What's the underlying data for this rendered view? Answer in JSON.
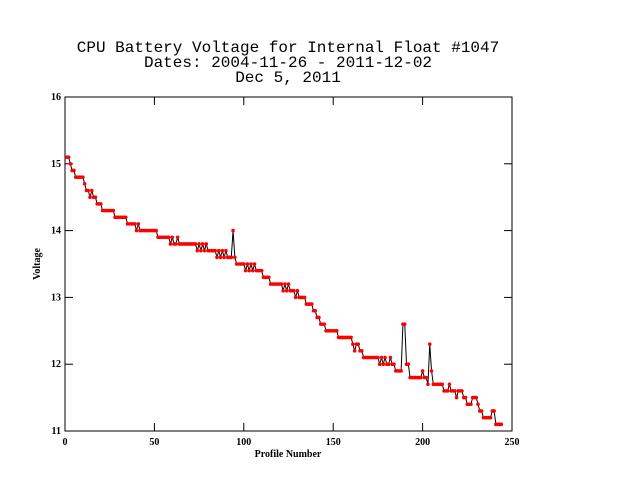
{
  "chart_data": {
    "type": "line",
    "title": [
      "CPU Battery Voltage for Internal Float #1047",
      "Dates:  2004-11-26 -  2011-12-02",
      "Dec  5, 2011"
    ],
    "xlabel": "Profile Number",
    "ylabel": "Voltage",
    "xlim": [
      0,
      250
    ],
    "xticks": [
      0,
      50,
      100,
      150,
      200,
      250
    ],
    "ylim": [
      11,
      16
    ],
    "yticks": [
      11,
      12,
      13,
      14,
      15,
      16
    ],
    "x": [
      1,
      2,
      3,
      4,
      5,
      6,
      7,
      8,
      9,
      10,
      11,
      12,
      13,
      14,
      15,
      16,
      17,
      18,
      19,
      20,
      21,
      22,
      23,
      24,
      25,
      26,
      27,
      28,
      29,
      30,
      31,
      32,
      33,
      34,
      35,
      36,
      37,
      38,
      39,
      40,
      41,
      42,
      43,
      44,
      45,
      46,
      47,
      48,
      49,
      50,
      51,
      52,
      53,
      54,
      55,
      56,
      57,
      58,
      59,
      60,
      61,
      62,
      63,
      64,
      65,
      66,
      67,
      68,
      69,
      70,
      71,
      72,
      73,
      74,
      75,
      76,
      77,
      78,
      79,
      80,
      81,
      82,
      83,
      84,
      85,
      86,
      87,
      88,
      89,
      90,
      91,
      92,
      93,
      94,
      95,
      96,
      97,
      98,
      99,
      100,
      101,
      102,
      103,
      104,
      105,
      106,
      107,
      108,
      109,
      110,
      111,
      112,
      113,
      114,
      115,
      116,
      117,
      118,
      119,
      120,
      121,
      122,
      123,
      124,
      125,
      126,
      127,
      128,
      129,
      130,
      131,
      132,
      133,
      134,
      135,
      136,
      137,
      138,
      139,
      140,
      141,
      142,
      143,
      144,
      145,
      146,
      147,
      148,
      149,
      150,
      151,
      152,
      153,
      154,
      155,
      156,
      157,
      158,
      159,
      160,
      161,
      162,
      163,
      164,
      165,
      166,
      167,
      168,
      169,
      170,
      171,
      172,
      173,
      174,
      175,
      176,
      177,
      178,
      179,
      180,
      181,
      182,
      183,
      184,
      185,
      186,
      187,
      188,
      189,
      190,
      191,
      192,
      193,
      194,
      195,
      196,
      197,
      198,
      199,
      200,
      201,
      202,
      203,
      204,
      205,
      206,
      207,
      208,
      209,
      210,
      211,
      212,
      213,
      214,
      215,
      216,
      217,
      218,
      219,
      220,
      221,
      222,
      223,
      224,
      225,
      226,
      227,
      228,
      229,
      230,
      231,
      232,
      233,
      234,
      235,
      236,
      237,
      238,
      239,
      240,
      241,
      242,
      243,
      244
    ],
    "values": [
      15.1,
      15.1,
      15.0,
      14.9,
      14.9,
      14.8,
      14.8,
      14.8,
      14.8,
      14.8,
      14.7,
      14.6,
      14.6,
      14.5,
      14.6,
      14.5,
      14.5,
      14.4,
      14.4,
      14.4,
      14.3,
      14.3,
      14.3,
      14.3,
      14.3,
      14.3,
      14.3,
      14.2,
      14.2,
      14.2,
      14.2,
      14.2,
      14.2,
      14.2,
      14.1,
      14.1,
      14.1,
      14.1,
      14.1,
      14.0,
      14.1,
      14.0,
      14.0,
      14.0,
      14.0,
      14.0,
      14.0,
      14.0,
      14.0,
      14.0,
      14.0,
      13.9,
      13.9,
      13.9,
      13.9,
      13.9,
      13.9,
      13.9,
      13.8,
      13.9,
      13.8,
      13.8,
      13.9,
      13.8,
      13.8,
      13.8,
      13.8,
      13.8,
      13.8,
      13.8,
      13.8,
      13.8,
      13.8,
      13.7,
      13.8,
      13.7,
      13.8,
      13.7,
      13.8,
      13.7,
      13.7,
      13.7,
      13.7,
      13.7,
      13.6,
      13.7,
      13.6,
      13.7,
      13.6,
      13.7,
      13.6,
      13.6,
      13.6,
      14.0,
      13.6,
      13.5,
      13.5,
      13.5,
      13.5,
      13.5,
      13.4,
      13.5,
      13.4,
      13.5,
      13.4,
      13.5,
      13.4,
      13.4,
      13.4,
      13.4,
      13.3,
      13.3,
      13.3,
      13.3,
      13.2,
      13.2,
      13.2,
      13.2,
      13.2,
      13.2,
      13.2,
      13.1,
      13.2,
      13.1,
      13.2,
      13.1,
      13.1,
      13.1,
      13.0,
      13.1,
      13.0,
      13.0,
      13.0,
      13.0,
      12.9,
      12.9,
      12.9,
      12.9,
      12.8,
      12.8,
      12.7,
      12.7,
      12.6,
      12.6,
      12.6,
      12.5,
      12.5,
      12.5,
      12.5,
      12.5,
      12.5,
      12.5,
      12.4,
      12.4,
      12.4,
      12.4,
      12.4,
      12.4,
      12.4,
      12.4,
      12.3,
      12.2,
      12.3,
      12.3,
      12.2,
      12.2,
      12.1,
      12.1,
      12.1,
      12.1,
      12.1,
      12.1,
      12.1,
      12.1,
      12.1,
      12.0,
      12.1,
      12.0,
      12.1,
      12.0,
      12.0,
      12.1,
      12.0,
      12.0,
      11.9,
      11.9,
      11.9,
      11.9,
      12.6,
      12.6,
      12.0,
      12.0,
      11.8,
      11.8,
      11.8,
      11.8,
      11.8,
      11.8,
      11.8,
      11.9,
      11.8,
      11.8,
      11.7,
      12.3,
      11.9,
      11.7,
      11.7,
      11.7,
      11.7,
      11.7,
      11.7,
      11.6,
      11.6,
      11.6,
      11.7,
      11.6,
      11.6,
      11.6,
      11.5,
      11.6,
      11.6,
      11.6,
      11.5,
      11.5,
      11.4,
      11.4,
      11.4,
      11.5,
      11.5,
      11.5,
      11.4,
      11.3,
      11.3,
      11.2,
      11.2,
      11.2,
      11.2,
      11.2,
      11.3,
      11.3,
      11.1,
      11.1,
      11.1,
      11.1
    ],
    "line_color": "#000000",
    "marker_color": "#ff0000"
  }
}
